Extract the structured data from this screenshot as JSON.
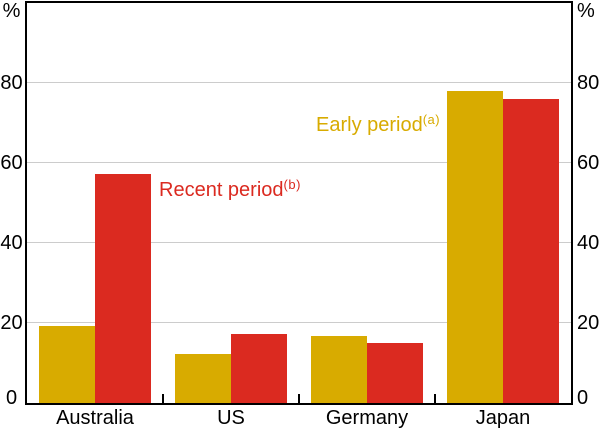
{
  "chart_data": {
    "type": "bar",
    "categories": [
      "Australia",
      "US",
      "Germany",
      "Japan"
    ],
    "series": [
      {
        "name": "Early period",
        "footnote_marker": "(a)",
        "color": "#D8AB00",
        "values": [
          19.3,
          12.2,
          16.7,
          77.9
        ]
      },
      {
        "name": "Recent period",
        "footnote_marker": "(b)",
        "color": "#DB2A20",
        "values": [
          57.3,
          17.3,
          15.0,
          76.1
        ]
      }
    ],
    "title": "",
    "xlabel": "",
    "ylabel_left_unit": "%",
    "ylabel_right_unit": "%",
    "ylim": [
      0,
      100
    ],
    "yticks": [
      0,
      20,
      40,
      60,
      80
    ],
    "grid": true,
    "gridline_color": "#CCCCCC",
    "frame_color": "#000000",
    "legend_position": "in-plot text annotations"
  },
  "annotations": {
    "early": {
      "text": "Early period",
      "marker": "(a)"
    },
    "recent": {
      "text": "Recent period",
      "marker": "(b)"
    }
  }
}
